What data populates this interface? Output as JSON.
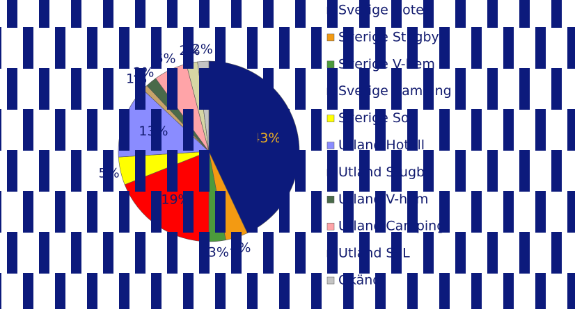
{
  "chart_data": {
    "type": "pie",
    "categories": [
      "Sverige Hotell",
      "Sverige Stugby",
      "Sverige V-hem",
      "Sverige Camping",
      "Sverige SoL",
      "Utland Hotell",
      "Utland Stugby",
      "Utland V-hem",
      "Utland Camping",
      "Utland SoL",
      "Okänd"
    ],
    "values": [
      43,
      4,
      3,
      19,
      5,
      13,
      1,
      2,
      6,
      2,
      2
    ],
    "value_labels": [
      "43%",
      "4%",
      "3%",
      "19%",
      "5%",
      "13%",
      "1%",
      "2%",
      "6%",
      "2%",
      "2%"
    ],
    "colors": [
      "#0c1a7c",
      "#f39a12",
      "#4c9a3c",
      "#ff0000",
      "#ffff00",
      "#8a8cff",
      "#c8a46a",
      "#4a6a4a",
      "#ffa4a8",
      "#d6d6a4",
      "#c4c4c4"
    ],
    "legend": "right"
  }
}
